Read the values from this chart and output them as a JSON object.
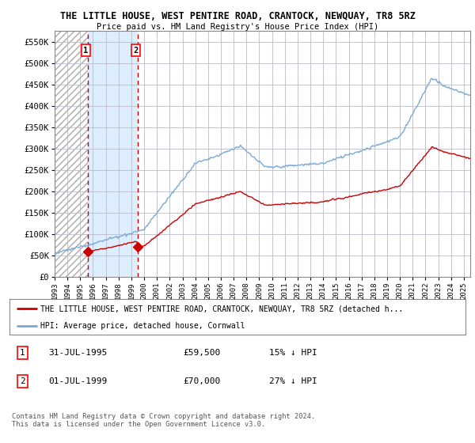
{
  "title": "THE LITTLE HOUSE, WEST PENTIRE ROAD, CRANTOCK, NEWQUAY, TR8 5RZ",
  "subtitle": "Price paid vs. HM Land Registry's House Price Index (HPI)",
  "ylabel_ticks": [
    "£0",
    "£50K",
    "£100K",
    "£150K",
    "£200K",
    "£250K",
    "£300K",
    "£350K",
    "£400K",
    "£450K",
    "£500K",
    "£550K"
  ],
  "ytick_values": [
    0,
    50000,
    100000,
    150000,
    200000,
    250000,
    300000,
    350000,
    400000,
    450000,
    500000,
    550000
  ],
  "ylim": [
    0,
    575000
  ],
  "hpi_color": "#7aaad4",
  "price_color": "#cc0000",
  "sale1_date_num": 1995.58,
  "sale1_price": 59500,
  "sale1_label": "1",
  "sale2_date_num": 1999.5,
  "sale2_price": 70000,
  "sale2_label": "2",
  "legend_line1": "THE LITTLE HOUSE, WEST PENTIRE ROAD, CRANTOCK, NEWQUAY, TR8 5RZ (detached h...",
  "legend_line2": "HPI: Average price, detached house, Cornwall",
  "table_row1": [
    "1",
    "31-JUL-1995",
    "£59,500",
    "15% ↓ HPI"
  ],
  "table_row2": [
    "2",
    "01-JUL-1999",
    "£70,000",
    "27% ↓ HPI"
  ],
  "footer": "Contains HM Land Registry data © Crown copyright and database right 2024.\nThis data is licensed under the Open Government Licence v3.0.",
  "xmin": 1993.0,
  "xmax": 2025.5,
  "hatch_bg_color": "#c8c8c8",
  "light_blue_bg": "#ddeeff",
  "grid_color": "#bbbbcc"
}
